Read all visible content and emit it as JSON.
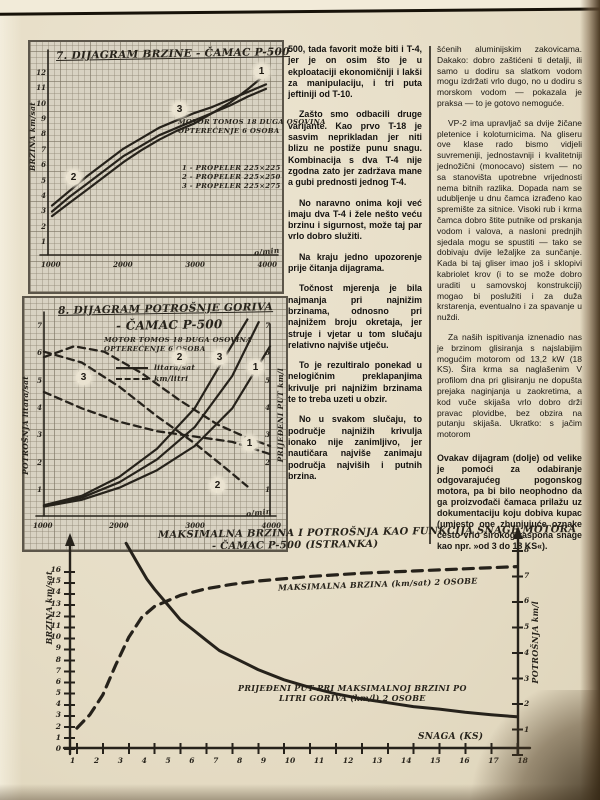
{
  "columns": {
    "middle": [
      {
        "text": "500, tada favorit može biti i T-4, jer je on osim što je u ekploataciji ekonomičniji i lakši za manipulaciju, i tri puta jeftiniji od T-10."
      },
      {
        "text": "Zašto smo odbacili druge varijante. Kao prvo T-18 je sasvim neprikladan jer niti blizu ne postiže punu snagu. Kombinacija s dva T-4 nije zgodna zato jer zadržava mane a gubi prednosti jednog T-4."
      },
      {
        "text": "No naravno onima koji već imaju dva T-4 i žele nešto veću brzinu i sigurnost, može taj par vrlo dobro služiti."
      },
      {
        "text": "Na kraju jedno upozorenje prije čitanja dijagrama."
      },
      {
        "text": "Točnost mjerenja je bila najmanja pri najnižim brzinama, odnosno pri najnižem broju okretaja, jer struje i vjetar u tom slučaju relativno najviše utječu."
      },
      {
        "text": "To je rezultiralo ponekad u nelogičnim preklapanjima krivulje pri najnižim brzinama te to treba uzeti u obzir."
      },
      {
        "text": "No u svakom slučaju, to područje najnižih krivulja ionako nije zanimljivo, jer nautičara najviše zanimaju područja najviših i putnih brzina."
      }
    ],
    "right": [
      {
        "text": "šćenih aluminijskim zakovicama. Dakako: dobro zaštićeni ti detalji, ili samo u dodiru sa slatkom vodom mogu izdržati vrlo dugo, no u dodiru s morskom vodom — pokazala je praksa — to je gotovo nemoguće."
      },
      {
        "text": "VP-2 ima upravljač sa dvije žičane pletenice i koloturnicima. Na gliseru ove klase rado bismo vidjeli suvremeniji, jednostavniji i kvalitetniji jednožični (monocavo) sistem — no sa stanovišta upotrebne vrijednosti nema bitnih razlika. Dopada nam se udubljenje u dnu čamca izrađeno kao spremište za sitnice. Visoki rub i krma čamca dobro štite putnike od prskanja vodom i valova, a nasloni prednjih sjedala mogu se spustiti — tako se dobivaju dvije ležaljke za sunčanje. Kada bi taj gliser imao još i sklopivi kabriolet krov (i to se može dobro uraditi u samovskoj konstrukciji) mogao bi poslužiti i za duža krstarenja, eventualno i za spavanje u nuždi."
      },
      {
        "text": "Za naših ispitivanja iznenadio nas je brzinom glisiranja s najslabijim mogućim motorom od 13,2 kW (18 KS). Šira krma sa naglašenim V profilom dna pri glisiranju ne dopušta prejaka naginjanja u zaokretima, a kod vuče skijaša vrlo dobro drži pravac plovidbe, bez obzira na putanju skijaša. Ukratko: s jačim motorom"
      },
      {
        "text": "Ovakav dijagram (dolje) od velike je pomoći za odabiranje odgovarajućeg pogonskog motora, pa bi bilo neophodno da ga proizvođači čamaca prilažu uz dokumentaciju koju dobiva kupac (umjesto one zbunjujuće oznake često vrlo širokog raspona snage kao npr. »od 3 do 18 KS«).",
        "bold": true
      }
    ]
  },
  "chart_data": [
    {
      "type": "line",
      "title": "7. DIJAGRAM BRZINE - ČAMAC P-500",
      "note_line1": "MOTOR TOMOS 18 DUGA OSOVINA",
      "note_line2": "OPTEREĆENJE 6 OSOBA",
      "prop_legend_1": "1 - PROPELER 225×225",
      "prop_legend_2": "2 - PROPELER 225×250",
      "prop_legend_3": "3 - PROPELER 225×275",
      "ylabel": "BRZINA km/sat",
      "xlabel": "o/min",
      "xlim": [
        1000,
        4000
      ],
      "ylim": [
        0,
        13.5
      ],
      "x_ticks": [
        "1000",
        "2000",
        "3000",
        "4000"
      ],
      "y_ticks": [
        "12",
        "11",
        "10",
        "9",
        "8",
        "7",
        "6",
        "5",
        "4",
        "3",
        "2",
        "1"
      ],
      "series": [
        {
          "name": "propeler 225x225",
          "points": [
            [
              1000,
              2.6
            ],
            [
              1250,
              3.5
            ],
            [
              1500,
              4.4
            ],
            [
              1750,
              5.3
            ],
            [
              2000,
              6.2
            ],
            [
              2250,
              7.0
            ],
            [
              2500,
              7.7
            ],
            [
              2750,
              8.3
            ],
            [
              3000,
              8.8
            ],
            [
              3250,
              9.5
            ],
            [
              3500,
              10.2
            ],
            [
              3750,
              11.1
            ],
            [
              4000,
              12.1
            ]
          ]
        },
        {
          "name": "propeler 225x250",
          "points": [
            [
              1000,
              2.9
            ],
            [
              1250,
              3.9
            ],
            [
              1500,
              4.8
            ],
            [
              1750,
              5.7
            ],
            [
              2000,
              6.6
            ],
            [
              2250,
              7.3
            ],
            [
              2500,
              8.0
            ],
            [
              2750,
              8.5
            ],
            [
              3000,
              9.0
            ],
            [
              3250,
              9.5
            ],
            [
              3500,
              10.0
            ],
            [
              3750,
              10.6
            ],
            [
              4000,
              11.1
            ]
          ]
        },
        {
          "name": "propeler 225x275",
          "points": [
            [
              1000,
              3.3
            ],
            [
              1250,
              4.3
            ],
            [
              1500,
              5.3
            ],
            [
              1750,
              6.2
            ],
            [
              2000,
              7.1
            ],
            [
              2250,
              7.8
            ],
            [
              2500,
              8.5
            ],
            [
              2750,
              9.0
            ],
            [
              3000,
              9.5
            ],
            [
              3250,
              9.9
            ],
            [
              3500,
              10.4
            ],
            [
              3750,
              10.9
            ],
            [
              4000,
              11.4
            ]
          ]
        }
      ],
      "curve_labels": [
        {
          "text": "1"
        },
        {
          "text": "2"
        },
        {
          "text": "3"
        }
      ]
    },
    {
      "type": "line",
      "title": "8. DIJAGRAM POTROŠNJE GORIVA",
      "subtitle": "- ČAMAC P-500",
      "note_line1": "MOTOR TOMOS 18 DUGA OSOVINA",
      "note_line2": "OPTEREĆENJE 6 OSOBA",
      "legend_solid": "litara/sat",
      "legend_dashed": "km/litri",
      "ylabel_left": "POTROŠNJA litara/sat",
      "ylabel_right": "PRIJEĐENI PUT km/l",
      "xlabel": "o/min",
      "xlim": [
        1000,
        4000
      ],
      "ylim": [
        0,
        7.5
      ],
      "x_ticks": [
        "1000",
        "2000",
        "3000",
        "4000"
      ],
      "y_ticks_left": [
        "7",
        "6",
        "5",
        "4",
        "3",
        "2",
        "1"
      ],
      "y_ticks_right": [
        "7",
        "6",
        "5",
        "4",
        "3",
        "2",
        "1"
      ],
      "series": [
        {
          "name": "1 litara/sat",
          "points": [
            [
              1000,
              0.35
            ],
            [
              1500,
              0.6
            ],
            [
              2000,
              1.05
            ],
            [
              2500,
              1.7
            ],
            [
              3000,
              2.6
            ],
            [
              3500,
              4.0
            ],
            [
              4000,
              6.3
            ]
          ]
        },
        {
          "name": "2 litara/sat",
          "points": [
            [
              1000,
              0.4
            ],
            [
              1500,
              0.75
            ],
            [
              2000,
              1.45
            ],
            [
              2500,
              2.5
            ],
            [
              3000,
              4.0
            ],
            [
              3400,
              5.9
            ],
            [
              3700,
              7.3
            ]
          ]
        },
        {
          "name": "3 litara/sat",
          "points": [
            [
              1000,
              0.38
            ],
            [
              1500,
              0.68
            ],
            [
              2000,
              1.25
            ],
            [
              2500,
              2.1
            ],
            [
              3000,
              3.3
            ],
            [
              3500,
              5.2
            ],
            [
              3850,
              7.2
            ]
          ]
        },
        {
          "name": "3 km/litri",
          "dashed": true,
          "points": [
            [
              1000,
              5.9
            ],
            [
              1400,
              6.3
            ],
            [
              1800,
              6.1
            ],
            [
              2300,
              5.3
            ],
            [
              2800,
              4.3
            ],
            [
              3300,
              3.4
            ],
            [
              3700,
              2.9
            ],
            [
              4000,
              2.6
            ]
          ]
        },
        {
          "name": "1 km/litri",
          "dashed": true,
          "points": [
            [
              1000,
              4.6
            ],
            [
              1500,
              4.0
            ],
            [
              2000,
              3.5
            ],
            [
              2500,
              3.15
            ],
            [
              3000,
              2.95
            ],
            [
              3500,
              2.75
            ],
            [
              4000,
              2.3
            ]
          ]
        },
        {
          "name": "2 km/litri",
          "dashed": true,
          "points": [
            [
              1000,
              6.1
            ],
            [
              1500,
              5.7
            ],
            [
              2000,
              4.8
            ],
            [
              2500,
              3.7
            ],
            [
              3000,
              2.7
            ],
            [
              3400,
              1.8
            ],
            [
              3700,
              1.1
            ]
          ]
        }
      ],
      "curve_labels": [
        {
          "text": "2"
        },
        {
          "text": "3"
        },
        {
          "text": "1"
        },
        {
          "text": "3"
        },
        {
          "text": "1"
        },
        {
          "text": "2"
        }
      ]
    },
    {
      "type": "line",
      "title_line1": "MAKSIMALNA BRZINA I POTROŠNJA KAO FUNKCIJA SNAGE MOTORA",
      "title_line2": "- ČAMAC P-500 (ISTRANKA)",
      "ylabel_left": "BRZINA km/sat",
      "ylabel_right": "POTROŠNJA km/l",
      "xlabel": "SNAGA (KS)",
      "xlim": [
        0,
        18
      ],
      "ylim_left": [
        0,
        16
      ],
      "ylim_right": [
        0,
        8
      ],
      "x_ticks": [
        "1",
        "2",
        "3",
        "4",
        "5",
        "6",
        "7",
        "8",
        "9",
        "10",
        "11",
        "12",
        "13",
        "14",
        "15",
        "16",
        "17",
        "18"
      ],
      "y_ticks_left": [
        "16",
        "15",
        "14",
        "13",
        "12",
        "11",
        "10",
        "9",
        "8",
        "7",
        "6",
        "5",
        "4",
        "3",
        "2",
        "1",
        "0"
      ],
      "y_ticks_right": [
        "8",
        "7",
        "6",
        "5",
        "4",
        "3",
        "2",
        "1"
      ],
      "series": [
        {
          "name": "MAKSIMALNA BRZINA (km/sat) 2 OSOBE",
          "dashed": true,
          "axis": "left",
          "points": [
            [
              1,
              1.8
            ],
            [
              1.5,
              3.0
            ],
            [
              2,
              4.8
            ],
            [
              2.5,
              7.5
            ],
            [
              3,
              10.0
            ],
            [
              3.5,
              11.8
            ],
            [
              4,
              12.8
            ],
            [
              5,
              13.8
            ],
            [
              6,
              14.4
            ],
            [
              7,
              14.8
            ],
            [
              8,
              15.1
            ],
            [
              10,
              15.5
            ],
            [
              12,
              15.8
            ],
            [
              14,
              16.0
            ],
            [
              16,
              16.2
            ],
            [
              18,
              16.4
            ]
          ]
        },
        {
          "name": "PRIJEĐENI PUT PRI MAKSIMALNOJ BRZINI PO LITRI GORIVA (km/l) 2 OSOBE",
          "axis": "right",
          "points": [
            [
              2.9,
              8.3
            ],
            [
              3.3,
              7.6
            ],
            [
              3.7,
              6.9
            ],
            [
              4,
              6.5
            ],
            [
              4.5,
              5.9
            ],
            [
              5,
              5.3
            ],
            [
              5.5,
              4.9
            ],
            [
              6,
              4.5
            ],
            [
              6.5,
              4.1
            ],
            [
              7,
              3.85
            ],
            [
              7.5,
              3.6
            ],
            [
              8,
              3.35
            ],
            [
              9,
              2.95
            ],
            [
              10,
              2.65
            ],
            [
              11,
              2.4
            ],
            [
              12,
              2.2
            ],
            [
              13,
              2.05
            ],
            [
              14,
              1.9
            ],
            [
              15,
              1.8
            ],
            [
              16,
              1.68
            ],
            [
              17,
              1.58
            ],
            [
              18,
              1.5
            ]
          ]
        }
      ],
      "series_label_dashed": "MAKSIMALNA BRZINA (km/sat) 2 OSOBE",
      "series_label_solid_1": "PRIJEĐENI PUT PRI MAKSIMALNOJ BRZINI PO",
      "series_label_solid_2": "LITRI GORIVA (km/l) 2 OSOBE"
    }
  ]
}
